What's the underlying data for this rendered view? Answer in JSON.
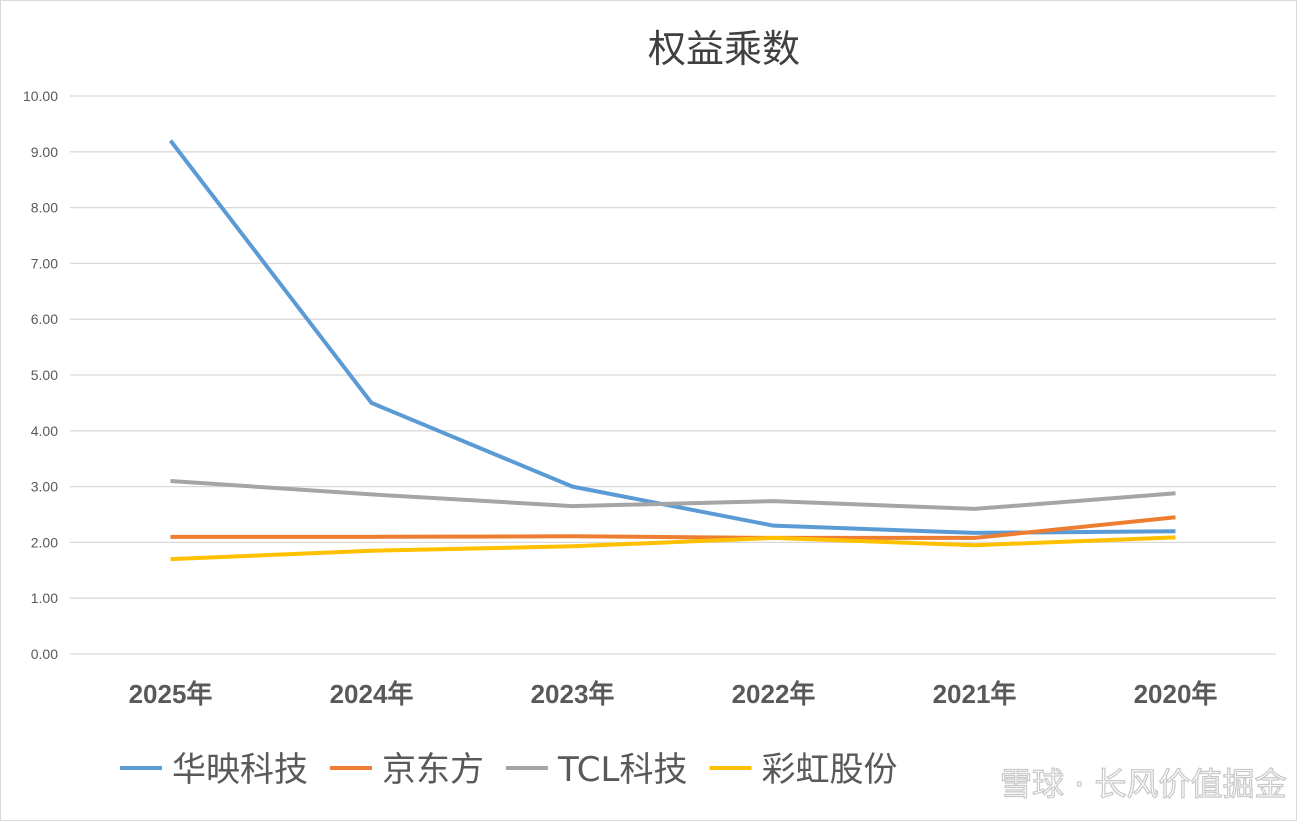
{
  "chart_data": {
    "type": "line",
    "title": "权益乘数",
    "xlabel": "",
    "ylabel": "",
    "categories": [
      "2025年",
      "2024年",
      "2023年",
      "2022年",
      "2021年",
      "2020年"
    ],
    "ylim": [
      0,
      10
    ],
    "yticks": [
      "0.00",
      "1.00",
      "2.00",
      "3.00",
      "4.00",
      "5.00",
      "6.00",
      "7.00",
      "8.00",
      "9.00",
      "10.00"
    ],
    "grid": true,
    "legend": "bottom",
    "series": [
      {
        "name": "华映科技",
        "color": "#5b9bd5",
        "values": [
          9.2,
          4.5,
          3.0,
          2.3,
          2.17,
          2.2
        ]
      },
      {
        "name": "京东方",
        "color": "#ed7d31",
        "values": [
          2.1,
          2.1,
          2.11,
          2.08,
          2.08,
          2.45
        ]
      },
      {
        "name": "TCL科技",
        "color": "#a5a5a5",
        "values": [
          3.1,
          2.86,
          2.65,
          2.74,
          2.6,
          2.88
        ]
      },
      {
        "name": "彩虹股份",
        "color": "#ffc000",
        "values": [
          1.7,
          1.85,
          1.93,
          2.08,
          1.95,
          2.09
        ]
      }
    ]
  },
  "watermark": "雪球 · 长风价值掘金"
}
